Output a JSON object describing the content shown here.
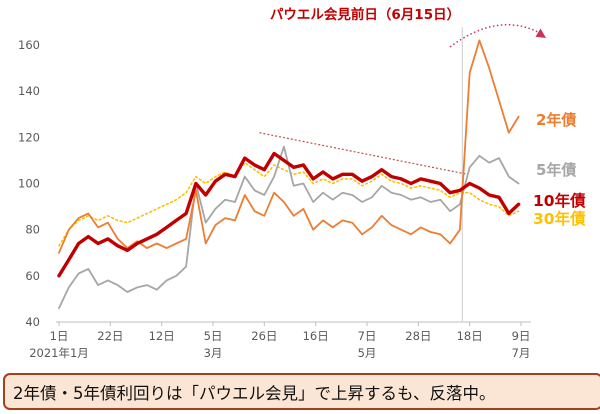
{
  "annotation": {
    "title": "パウエル会見前日（6月15日）",
    "trendline": {
      "from_day": 82,
      "from_value": 122,
      "to_day": 167,
      "to_value": 104,
      "color": "#C0504D"
    },
    "arc_arrow_color": "#C9345C",
    "event_line_color": "#D6D6D6"
  },
  "caption": {
    "text": "2年債・5年債利回りは「パウエル会見」で上昇するも、反落中。"
  },
  "axis": {
    "text_color": "#595959",
    "line_color": "#BFBFBF"
  },
  "chart_data": {
    "type": "line",
    "title": "パウエル会見前日（6月15日）",
    "xlabel": "",
    "ylabel": "",
    "ylim": [
      40,
      160
    ],
    "y_ticks": [
      40,
      60,
      80,
      100,
      120,
      140,
      160
    ],
    "grid": false,
    "legend_position": "right-inline-labels",
    "x_unit": "days from 2021-01-01",
    "x_range_days": [
      0,
      189
    ],
    "x_tick_days": [
      0,
      21,
      42,
      63,
      84,
      105,
      126,
      147,
      168,
      189
    ],
    "x_tick_labels": [
      "1日",
      "22日",
      "12日",
      "5日",
      "26日",
      "16日",
      "7日",
      "28日",
      "18日",
      "9日"
    ],
    "x_month_labels": [
      {
        "day": 0,
        "label": "2021年1月"
      },
      {
        "day": 63,
        "label": "3月"
      },
      {
        "day": 126,
        "label": "5月"
      },
      {
        "day": 189,
        "label": "7月"
      }
    ],
    "event_line_day": 165,
    "days": [
      0,
      4,
      8,
      12,
      16,
      20,
      24,
      28,
      32,
      36,
      40,
      44,
      48,
      52,
      56,
      60,
      64,
      68,
      72,
      76,
      80,
      84,
      88,
      92,
      96,
      100,
      104,
      108,
      112,
      116,
      120,
      124,
      128,
      132,
      136,
      140,
      144,
      148,
      152,
      156,
      160,
      164,
      168,
      172,
      176,
      180,
      184,
      188
    ],
    "series": [
      {
        "name": "30年債",
        "color": "#FFC000",
        "style": "dotted",
        "width": 1.6,
        "values": [
          73,
          80,
          84,
          86,
          84,
          86,
          84,
          83,
          85,
          87,
          89,
          91,
          93,
          96,
          103,
          100,
          103,
          105,
          103,
          109,
          106,
          103,
          108,
          106,
          104,
          105,
          100,
          102,
          100,
          102,
          102,
          99,
          101,
          104,
          101,
          100,
          98,
          99,
          98,
          97,
          94,
          96,
          96,
          93,
          91,
          90,
          86,
          88
        ]
      },
      {
        "name": "5年債",
        "color": "#A6A6A6",
        "style": "solid",
        "width": 1.8,
        "values": [
          46,
          55,
          61,
          63,
          56,
          58,
          56,
          53,
          55,
          56,
          54,
          58,
          60,
          64,
          100,
          83,
          89,
          93,
          92,
          103,
          97,
          95,
          103,
          116,
          99,
          100,
          92,
          96,
          93,
          96,
          95,
          92,
          94,
          99,
          96,
          95,
          93,
          94,
          92,
          93,
          88,
          91,
          107,
          112,
          109,
          111,
          103,
          100
        ]
      },
      {
        "name": "2年債",
        "color": "#ED7D31",
        "style": "solid",
        "width": 1.8,
        "values": [
          70,
          80,
          85,
          87,
          81,
          83,
          76,
          72,
          75,
          72,
          74,
          72,
          74,
          76,
          97,
          74,
          82,
          85,
          84,
          95,
          88,
          86,
          96,
          92,
          86,
          89,
          80,
          84,
          81,
          84,
          83,
          78,
          81,
          86,
          82,
          80,
          78,
          81,
          79,
          78,
          74,
          80,
          148,
          162,
          150,
          136,
          122,
          129
        ]
      },
      {
        "name": "10年債",
        "color": "#C00000",
        "style": "solid",
        "width": 3.4,
        "values": [
          60,
          67,
          74,
          77,
          74,
          76,
          73,
          71,
          74,
          76,
          78,
          81,
          84,
          87,
          100,
          95,
          101,
          104,
          103,
          111,
          108,
          106,
          113,
          110,
          107,
          108,
          102,
          105,
          102,
          104,
          104,
          101,
          103,
          106,
          103,
          102,
          100,
          102,
          101,
          100,
          96,
          97,
          100,
          98,
          95,
          94,
          87,
          91
        ]
      }
    ]
  },
  "labels": {
    "y2": "2年債",
    "y5": "5年債",
    "y10": "10年債",
    "y30": "30年債"
  }
}
